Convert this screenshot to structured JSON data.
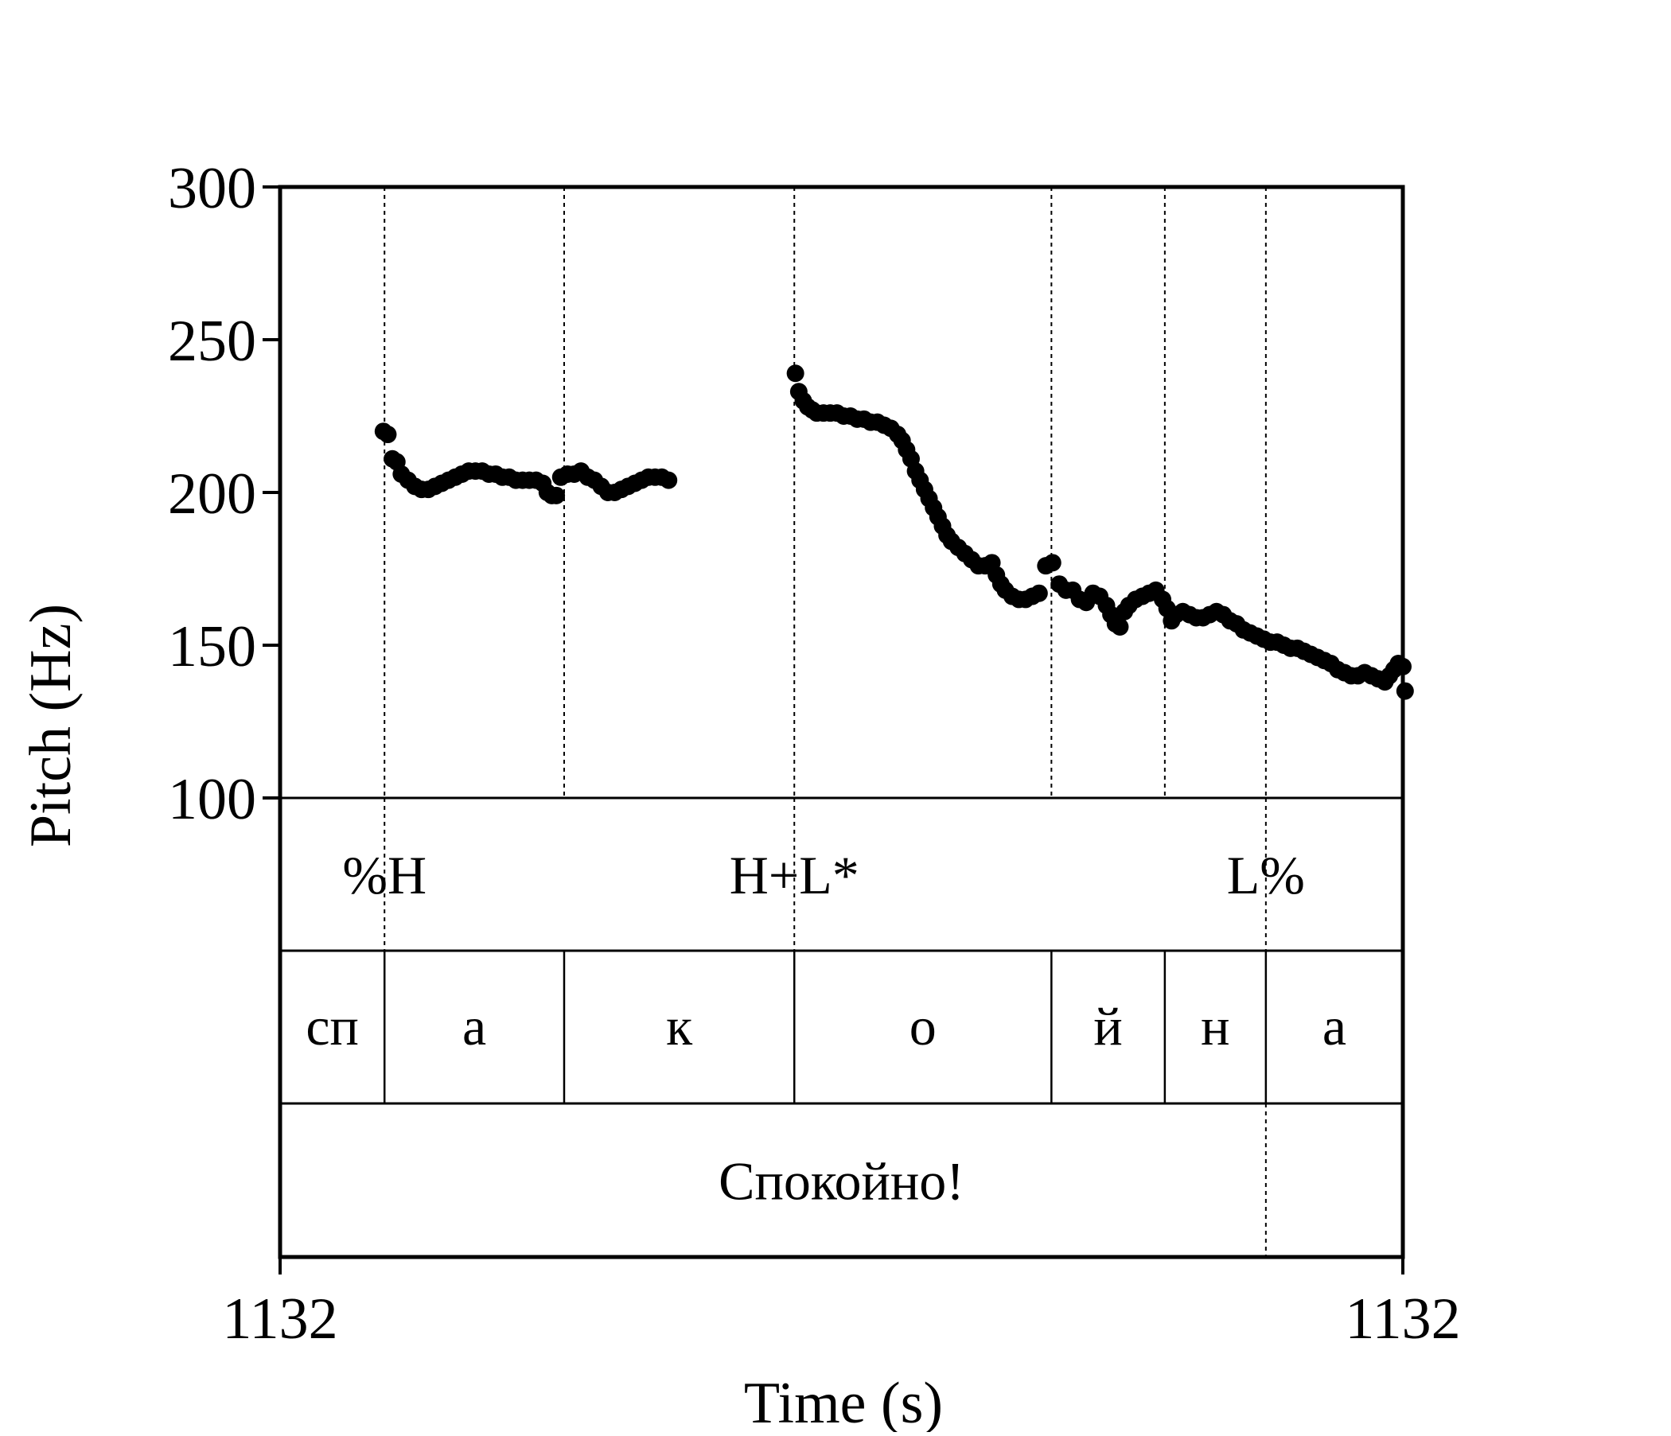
{
  "chart_data": {
    "type": "scatter",
    "xlabel": "Time (s)",
    "ylabel": "Pitch (Hz)",
    "ylim": [
      100,
      300
    ],
    "y_ticks": [
      "300",
      "250",
      "200",
      "150",
      "100"
    ],
    "x_ticks": [
      "1132",
      "1132"
    ],
    "xlim": [
      0,
      1
    ],
    "series": [
      {
        "color": "#000000",
        "points": [
          [
            0.092,
            220
          ],
          [
            0.096,
            219
          ],
          [
            0.1,
            211
          ],
          [
            0.104,
            210
          ],
          [
            0.108,
            206
          ],
          [
            0.114,
            204
          ],
          [
            0.12,
            202
          ],
          [
            0.126,
            201
          ],
          [
            0.132,
            201
          ],
          [
            0.138,
            202
          ],
          [
            0.144,
            203
          ],
          [
            0.15,
            204
          ],
          [
            0.156,
            205
          ],
          [
            0.162,
            206
          ],
          [
            0.168,
            207
          ],
          [
            0.174,
            207
          ],
          [
            0.18,
            207
          ],
          [
            0.186,
            206
          ],
          [
            0.192,
            206
          ],
          [
            0.198,
            205
          ],
          [
            0.204,
            205
          ],
          [
            0.21,
            204
          ],
          [
            0.216,
            204
          ],
          [
            0.222,
            204
          ],
          [
            0.228,
            204
          ],
          [
            0.234,
            203
          ],
          [
            0.238,
            200
          ],
          [
            0.242,
            199
          ],
          [
            0.246,
            199
          ],
          [
            0.25,
            205
          ],
          [
            0.256,
            206
          ],
          [
            0.262,
            206
          ],
          [
            0.268,
            207
          ],
          [
            0.274,
            205
          ],
          [
            0.28,
            204
          ],
          [
            0.286,
            202
          ],
          [
            0.292,
            200
          ],
          [
            0.298,
            200
          ],
          [
            0.304,
            201
          ],
          [
            0.31,
            202
          ],
          [
            0.316,
            203
          ],
          [
            0.322,
            204
          ],
          [
            0.328,
            205
          ],
          [
            0.334,
            205
          ],
          [
            0.34,
            205
          ],
          [
            0.346,
            204
          ],
          [
            0.459,
            239
          ],
          [
            0.462,
            233
          ],
          [
            0.466,
            230
          ],
          [
            0.47,
            228
          ],
          [
            0.474,
            227
          ],
          [
            0.478,
            226
          ],
          [
            0.484,
            226
          ],
          [
            0.49,
            226
          ],
          [
            0.496,
            226
          ],
          [
            0.502,
            225
          ],
          [
            0.508,
            225
          ],
          [
            0.514,
            224
          ],
          [
            0.52,
            224
          ],
          [
            0.526,
            223
          ],
          [
            0.532,
            223
          ],
          [
            0.538,
            222
          ],
          [
            0.544,
            221
          ],
          [
            0.55,
            219
          ],
          [
            0.554,
            217
          ],
          [
            0.558,
            214
          ],
          [
            0.562,
            211
          ],
          [
            0.566,
            207
          ],
          [
            0.57,
            204
          ],
          [
            0.574,
            201
          ],
          [
            0.578,
            198
          ],
          [
            0.582,
            195
          ],
          [
            0.586,
            192
          ],
          [
            0.59,
            189
          ],
          [
            0.594,
            186
          ],
          [
            0.598,
            184
          ],
          [
            0.604,
            182
          ],
          [
            0.61,
            180
          ],
          [
            0.616,
            178
          ],
          [
            0.622,
            176
          ],
          [
            0.628,
            176
          ],
          [
            0.634,
            177
          ],
          [
            0.638,
            173
          ],
          [
            0.642,
            170
          ],
          [
            0.646,
            168
          ],
          [
            0.652,
            166
          ],
          [
            0.658,
            165
          ],
          [
            0.664,
            165
          ],
          [
            0.67,
            166
          ],
          [
            0.676,
            167
          ],
          [
            0.682,
            176
          ],
          [
            0.688,
            177
          ],
          [
            0.694,
            170
          ],
          [
            0.7,
            168
          ],
          [
            0.706,
            168
          ],
          [
            0.712,
            165
          ],
          [
            0.718,
            164
          ],
          [
            0.724,
            167
          ],
          [
            0.73,
            166
          ],
          [
            0.736,
            163
          ],
          [
            0.74,
            160
          ],
          [
            0.744,
            157
          ],
          [
            0.748,
            156
          ],
          [
            0.752,
            161
          ],
          [
            0.756,
            163
          ],
          [
            0.762,
            165
          ],
          [
            0.768,
            166
          ],
          [
            0.774,
            167
          ],
          [
            0.78,
            168
          ],
          [
            0.786,
            165
          ],
          [
            0.79,
            162
          ],
          [
            0.794,
            158
          ],
          [
            0.798,
            160
          ],
          [
            0.804,
            161
          ],
          [
            0.81,
            160
          ],
          [
            0.816,
            159
          ],
          [
            0.822,
            159
          ],
          [
            0.828,
            160
          ],
          [
            0.834,
            161
          ],
          [
            0.84,
            160
          ],
          [
            0.846,
            158
          ],
          [
            0.852,
            157
          ],
          [
            0.858,
            155
          ],
          [
            0.864,
            154
          ],
          [
            0.87,
            153
          ],
          [
            0.876,
            152
          ],
          [
            0.882,
            151
          ],
          [
            0.888,
            151
          ],
          [
            0.894,
            150
          ],
          [
            0.9,
            149
          ],
          [
            0.906,
            149
          ],
          [
            0.912,
            148
          ],
          [
            0.918,
            147
          ],
          [
            0.924,
            146
          ],
          [
            0.93,
            145
          ],
          [
            0.936,
            144
          ],
          [
            0.942,
            142
          ],
          [
            0.948,
            141
          ],
          [
            0.954,
            140
          ],
          [
            0.96,
            140
          ],
          [
            0.966,
            141
          ],
          [
            0.972,
            140
          ],
          [
            0.978,
            139
          ],
          [
            0.984,
            138
          ],
          [
            0.988,
            140
          ],
          [
            0.992,
            142
          ],
          [
            0.996,
            144
          ],
          [
            1.0,
            143
          ],
          [
            1.002,
            135
          ]
        ]
      }
    ],
    "boundaries": [
      0.093,
      0.253,
      0.458,
      0.687,
      0.788,
      0.878
    ],
    "tones": [
      {
        "label": "%H",
        "x": 0.093
      },
      {
        "label": "H+L*",
        "x": 0.458
      },
      {
        "label": "L%",
        "x": 0.878
      }
    ],
    "segments": [
      {
        "label": "сп",
        "start": 0.0,
        "end": 0.093
      },
      {
        "label": "а",
        "start": 0.093,
        "end": 0.253
      },
      {
        "label": "к",
        "start": 0.253,
        "end": 0.458
      },
      {
        "label": "о",
        "start": 0.458,
        "end": 0.687
      },
      {
        "label": "й",
        "start": 0.687,
        "end": 0.788
      },
      {
        "label": "н",
        "start": 0.788,
        "end": 0.878
      },
      {
        "label": "а",
        "start": 0.878,
        "end": 1.0
      }
    ],
    "word": "Спокойно!"
  }
}
